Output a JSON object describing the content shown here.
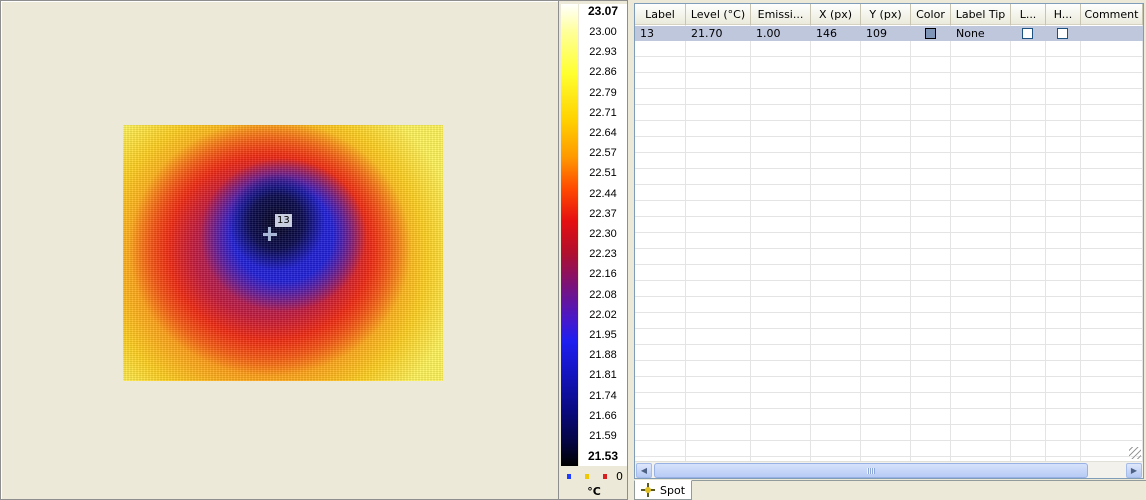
{
  "image_view": {
    "spot_marker_label": "13"
  },
  "scale": {
    "max_label": "23.07",
    "min_label": "21.53",
    "tick_labels": [
      "23.00",
      "22.93",
      "22.86",
      "22.79",
      "22.71",
      "22.64",
      "22.57",
      "22.51",
      "22.44",
      "22.37",
      "22.30",
      "22.23",
      "22.16",
      "22.08",
      "22.02",
      "21.95",
      "21.88",
      "21.81",
      "21.74",
      "21.66",
      "21.59"
    ],
    "unit": "°C",
    "marker_count": "0",
    "marker_colors": [
      "#1e3cff",
      "#f0c800",
      "#d82020"
    ]
  },
  "table": {
    "columns": [
      "Label",
      "Level (°C)",
      "Emissi...",
      "X (px)",
      "Y (px)",
      "Color",
      "Label Tip",
      "L...",
      "H...",
      "Comment"
    ],
    "rows": [
      {
        "label": "13",
        "level": "21.70",
        "emissivity": "1.00",
        "x": "146",
        "y": "109",
        "color": "#7f95b8",
        "label_tip": "None",
        "comment": ""
      }
    ]
  },
  "tabs": [
    {
      "label": "Spot",
      "icon": "spot-crosshair-icon"
    }
  ]
}
